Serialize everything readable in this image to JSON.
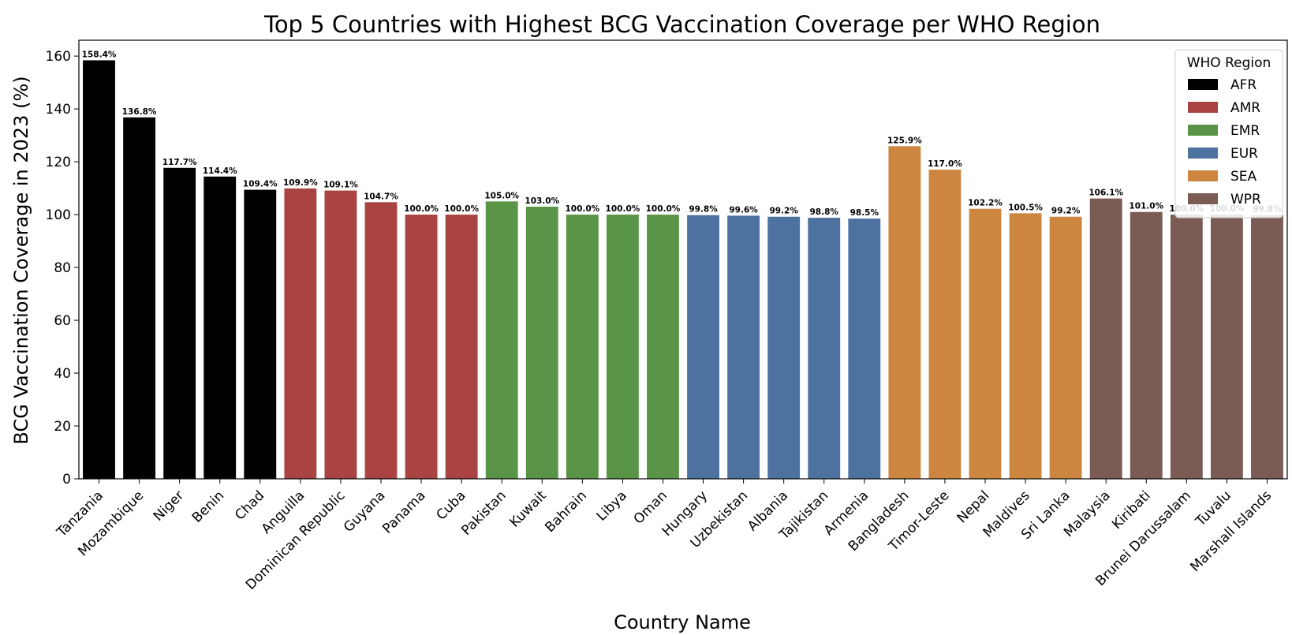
{
  "chart_data": {
    "type": "bar",
    "title": "Top 5 Countries with Highest BCG Vaccination Coverage per WHO Region",
    "xlabel": "Country Name",
    "ylabel": "BCG Vaccination Coverage in 2023 (%)",
    "ylim": [
      0,
      166
    ],
    "yticks": [
      0,
      20,
      40,
      60,
      80,
      100,
      120,
      140,
      160
    ],
    "grid": false,
    "legend": {
      "title": "WHO Region",
      "placement": "top-right",
      "entries": [
        {
          "name": "AFR",
          "color": "#000000"
        },
        {
          "name": "AMR",
          "color": "#a94442"
        },
        {
          "name": "EMR",
          "color": "#5a9446"
        },
        {
          "name": "EUR",
          "color": "#4e72a0"
        },
        {
          "name": "SEA",
          "color": "#cc8640"
        },
        {
          "name": "WPR",
          "color": "#7a5c54"
        }
      ]
    },
    "bars": [
      {
        "country": "Tanzania",
        "region": "AFR",
        "value": 158.4,
        "label": "158.4%"
      },
      {
        "country": "Mozambique",
        "region": "AFR",
        "value": 136.8,
        "label": "136.8%"
      },
      {
        "country": "Niger",
        "region": "AFR",
        "value": 117.7,
        "label": "117.7%"
      },
      {
        "country": "Benin",
        "region": "AFR",
        "value": 114.4,
        "label": "114.4%"
      },
      {
        "country": "Chad",
        "region": "AFR",
        "value": 109.4,
        "label": "109.4%"
      },
      {
        "country": "Anguilla",
        "region": "AMR",
        "value": 109.9,
        "label": "109.9%"
      },
      {
        "country": "Dominican Republic",
        "region": "AMR",
        "value": 109.1,
        "label": "109.1%"
      },
      {
        "country": "Guyana",
        "region": "AMR",
        "value": 104.7,
        "label": "104.7%"
      },
      {
        "country": "Panama",
        "region": "AMR",
        "value": 100.0,
        "label": "100.0%"
      },
      {
        "country": "Cuba",
        "region": "AMR",
        "value": 100.0,
        "label": "100.0%"
      },
      {
        "country": "Pakistan",
        "region": "EMR",
        "value": 105.0,
        "label": "105.0%"
      },
      {
        "country": "Kuwait",
        "region": "EMR",
        "value": 103.0,
        "label": "103.0%"
      },
      {
        "country": "Bahrain",
        "region": "EMR",
        "value": 100.0,
        "label": "100.0%"
      },
      {
        "country": "Libya",
        "region": "EMR",
        "value": 100.0,
        "label": "100.0%"
      },
      {
        "country": "Oman",
        "region": "EMR",
        "value": 100.0,
        "label": "100.0%"
      },
      {
        "country": "Hungary",
        "region": "EUR",
        "value": 99.8,
        "label": "99.8%"
      },
      {
        "country": "Uzbekistan",
        "region": "EUR",
        "value": 99.6,
        "label": "99.6%"
      },
      {
        "country": "Albania",
        "region": "EUR",
        "value": 99.2,
        "label": "99.2%"
      },
      {
        "country": "Tajikistan",
        "region": "EUR",
        "value": 98.8,
        "label": "98.8%"
      },
      {
        "country": "Armenia",
        "region": "EUR",
        "value": 98.5,
        "label": "98.5%"
      },
      {
        "country": "Bangladesh",
        "region": "SEA",
        "value": 125.9,
        "label": "125.9%"
      },
      {
        "country": "Timor-Leste",
        "region": "SEA",
        "value": 117.0,
        "label": "117.0%"
      },
      {
        "country": "Nepal",
        "region": "SEA",
        "value": 102.2,
        "label": "102.2%"
      },
      {
        "country": "Maldives",
        "region": "SEA",
        "value": 100.5,
        "label": "100.5%"
      },
      {
        "country": "Sri Lanka",
        "region": "SEA",
        "value": 99.2,
        "label": "99.2%"
      },
      {
        "country": "Malaysia",
        "region": "WPR",
        "value": 106.1,
        "label": "106.1%"
      },
      {
        "country": "Kiribati",
        "region": "WPR",
        "value": 101.0,
        "label": "101.0%"
      },
      {
        "country": "Brunei Darussalam",
        "region": "WPR",
        "value": 100.0,
        "label": "100.0%"
      },
      {
        "country": "Tuvalu",
        "region": "WPR",
        "value": 100.0,
        "label": "100.0%"
      },
      {
        "country": "Marshall Islands",
        "region": "WPR",
        "value": 99.8,
        "label": "99.8%"
      }
    ]
  }
}
